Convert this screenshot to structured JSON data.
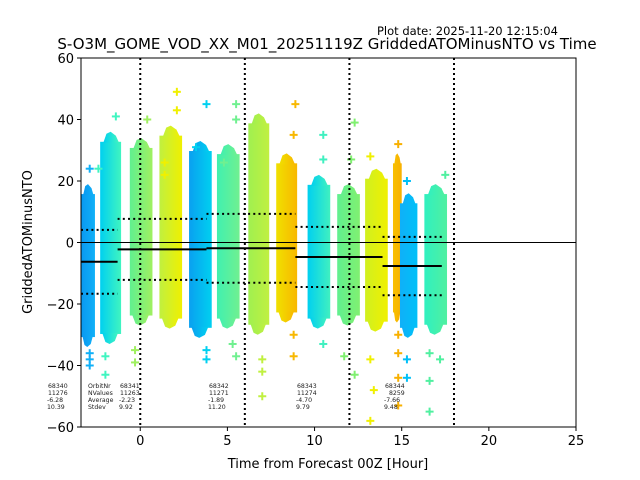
{
  "chart_data": {
    "type": "scatter",
    "title": "S-O3M_GOME_VOD_XX_M01_20251119Z GriddedATOMinusNTO vs Time",
    "plot_date": "Plot date: 2025-11-20 12:15:04",
    "xlabel": "Time from Forecast 00Z [Hour]",
    "ylabel": "GriddedATOMinusNTO",
    "xlim": [
      -3.4,
      25
    ],
    "ylim": [
      -60,
      60
    ],
    "xticks": [
      "0",
      "5",
      "10",
      "15",
      "20",
      "25"
    ],
    "xtick_values": [
      0,
      5,
      10,
      15,
      20,
      25
    ],
    "yticks": [
      "60",
      "40",
      "20",
      "0",
      "−20",
      "−40",
      "−60"
    ],
    "ytick_values": [
      60,
      40,
      20,
      0,
      -20,
      -40,
      -60
    ],
    "vlines_dotted": [
      0,
      6,
      12,
      18
    ],
    "hline": 0,
    "clusters": [
      {
        "x0": -3.4,
        "x1": -2.6,
        "ymin": -34,
        "ymax": 19,
        "c0": "#0a98f0",
        "c1": "#10b0f8",
        "outliers": [
          [
            -2.9,
            24
          ],
          [
            -2.9,
            -36
          ],
          [
            -2.9,
            -38
          ],
          [
            -2.9,
            -40
          ]
        ]
      },
      {
        "x0": -2.3,
        "x1": -1.1,
        "ymin": -33,
        "ymax": 36,
        "c0": "#00d0f0",
        "c1": "#40f5c0",
        "outliers": [
          [
            -1.4,
            41
          ],
          [
            -2.0,
            -37
          ],
          [
            -2.0,
            -43
          ],
          [
            -2.4,
            24
          ]
        ]
      },
      {
        "x0": -0.6,
        "x1": 0.7,
        "ymin": -27,
        "ymax": 34,
        "c0": "#60f090",
        "c1": "#a0f060",
        "outliers": [
          [
            0.4,
            40
          ],
          [
            -0.3,
            -35
          ],
          [
            -0.3,
            -39
          ]
        ]
      },
      {
        "x0": 1.1,
        "x1": 2.4,
        "ymin": -28,
        "ymax": 38,
        "c0": "#c0f040",
        "c1": "#f0f000",
        "outliers": [
          [
            2.1,
            49
          ],
          [
            2.1,
            43
          ],
          [
            1.4,
            26
          ],
          [
            1.4,
            22
          ]
        ]
      },
      {
        "x0": 2.8,
        "x1": 4.1,
        "ymin": -31,
        "ymax": 33,
        "c0": "#0aa0f0",
        "c1": "#00d0f0",
        "outliers": [
          [
            3.8,
            45
          ],
          [
            3.2,
            31
          ],
          [
            3.8,
            -35
          ],
          [
            3.8,
            -38
          ]
        ]
      },
      {
        "x0": 4.4,
        "x1": 5.7,
        "ymin": -28,
        "ymax": 32,
        "c0": "#40f0b0",
        "c1": "#70f090",
        "outliers": [
          [
            5.5,
            45
          ],
          [
            5.5,
            40
          ],
          [
            4.8,
            26
          ],
          [
            5.3,
            -33
          ],
          [
            5.5,
            -37
          ]
        ]
      },
      {
        "x0": 6.2,
        "x1": 7.4,
        "ymin": -30,
        "ymax": 42,
        "c0": "#a0f050",
        "c1": "#c0f040",
        "outliers": [
          [
            7.0,
            -38
          ],
          [
            7.0,
            -42
          ],
          [
            7.0,
            -50
          ]
        ]
      },
      {
        "x0": 7.8,
        "x1": 9.0,
        "ymin": -26,
        "ymax": 29,
        "c0": "#f0e000",
        "c1": "#f8b800",
        "outliers": [
          [
            8.9,
            45
          ],
          [
            8.8,
            35
          ],
          [
            8.8,
            -30
          ],
          [
            8.8,
            -37
          ]
        ]
      },
      {
        "x0": 9.6,
        "x1": 10.9,
        "ymin": -28,
        "ymax": 22,
        "c0": "#00d0f0",
        "c1": "#40f0c0",
        "outliers": [
          [
            10.5,
            35
          ],
          [
            10.5,
            27
          ],
          [
            10.5,
            -33
          ]
        ]
      },
      {
        "x0": 11.3,
        "x1": 12.6,
        "ymin": -27,
        "ymax": 19,
        "c0": "#60f090",
        "c1": "#80f070",
        "outliers": [
          [
            12.3,
            39
          ],
          [
            12.1,
            27
          ],
          [
            11.7,
            -37
          ],
          [
            12.3,
            -43
          ]
        ]
      },
      {
        "x0": 12.9,
        "x1": 14.2,
        "ymin": -29,
        "ymax": 24,
        "c0": "#d0f020",
        "c1": "#f0f000",
        "outliers": [
          [
            13.2,
            28
          ],
          [
            13.2,
            -38
          ],
          [
            13.4,
            -48
          ],
          [
            13.2,
            -58
          ]
        ]
      },
      {
        "x0": 14.5,
        "x1": 15.0,
        "ymin": -26,
        "ymax": 29,
        "c0": "#f8c000",
        "c1": "#f8b000",
        "outliers": [
          [
            14.8,
            32
          ],
          [
            14.8,
            -30
          ],
          [
            14.8,
            -36
          ],
          [
            14.8,
            -44
          ],
          [
            14.8,
            -53
          ]
        ]
      },
      {
        "x0": 14.9,
        "x1": 15.9,
        "ymin": -31,
        "ymax": 16,
        "c0": "#10b0f8",
        "c1": "#00c0f8",
        "outliers": [
          [
            15.3,
            20
          ],
          [
            15.3,
            -38
          ],
          [
            15.3,
            -44
          ]
        ]
      },
      {
        "x0": 16.3,
        "x1": 17.6,
        "ymin": -30,
        "ymax": 19,
        "c0": "#30f0c0",
        "c1": "#50f0a0",
        "outliers": [
          [
            17.5,
            22
          ],
          [
            16.6,
            -36
          ],
          [
            16.6,
            -45
          ],
          [
            16.6,
            -55
          ],
          [
            17.2,
            -38
          ]
        ]
      }
    ],
    "orbits": [
      {
        "label_col": "",
        "orbit": "68340",
        "nvalues": "11276",
        "average": "-6.28",
        "stdev": "10.39",
        "x0": -3.4,
        "x1": -1.3,
        "mean": -6.28,
        "sd": 10.39
      },
      {
        "label_col": "labels",
        "orbit": "68341",
        "nvalues": "11263",
        "average": "-2.23",
        "stdev": "9.92",
        "x0": -1.3,
        "x1": 3.8,
        "mean": -2.23,
        "sd": 9.92
      },
      {
        "label_col": "",
        "orbit": "68342",
        "nvalues": "11271",
        "average": "-1.89",
        "stdev": "11.20",
        "x0": 3.8,
        "x1": 8.9,
        "mean": -1.89,
        "sd": 11.2
      },
      {
        "label_col": "",
        "orbit": "68343",
        "nvalues": "11274",
        "average": "-4.70",
        "stdev": "9.79",
        "x0": 8.9,
        "x1": 13.9,
        "mean": -4.7,
        "sd": 9.79
      },
      {
        "label_col": "",
        "orbit": "68344",
        "nvalues": "8259",
        "average": "-7.66",
        "stdev": "9.48",
        "x0": 13.9,
        "x1": 17.3,
        "mean": -7.66,
        "sd": 9.48
      }
    ],
    "stat_labels": [
      "OrbitNr",
      "NValues",
      "Average",
      "Stdev"
    ]
  }
}
